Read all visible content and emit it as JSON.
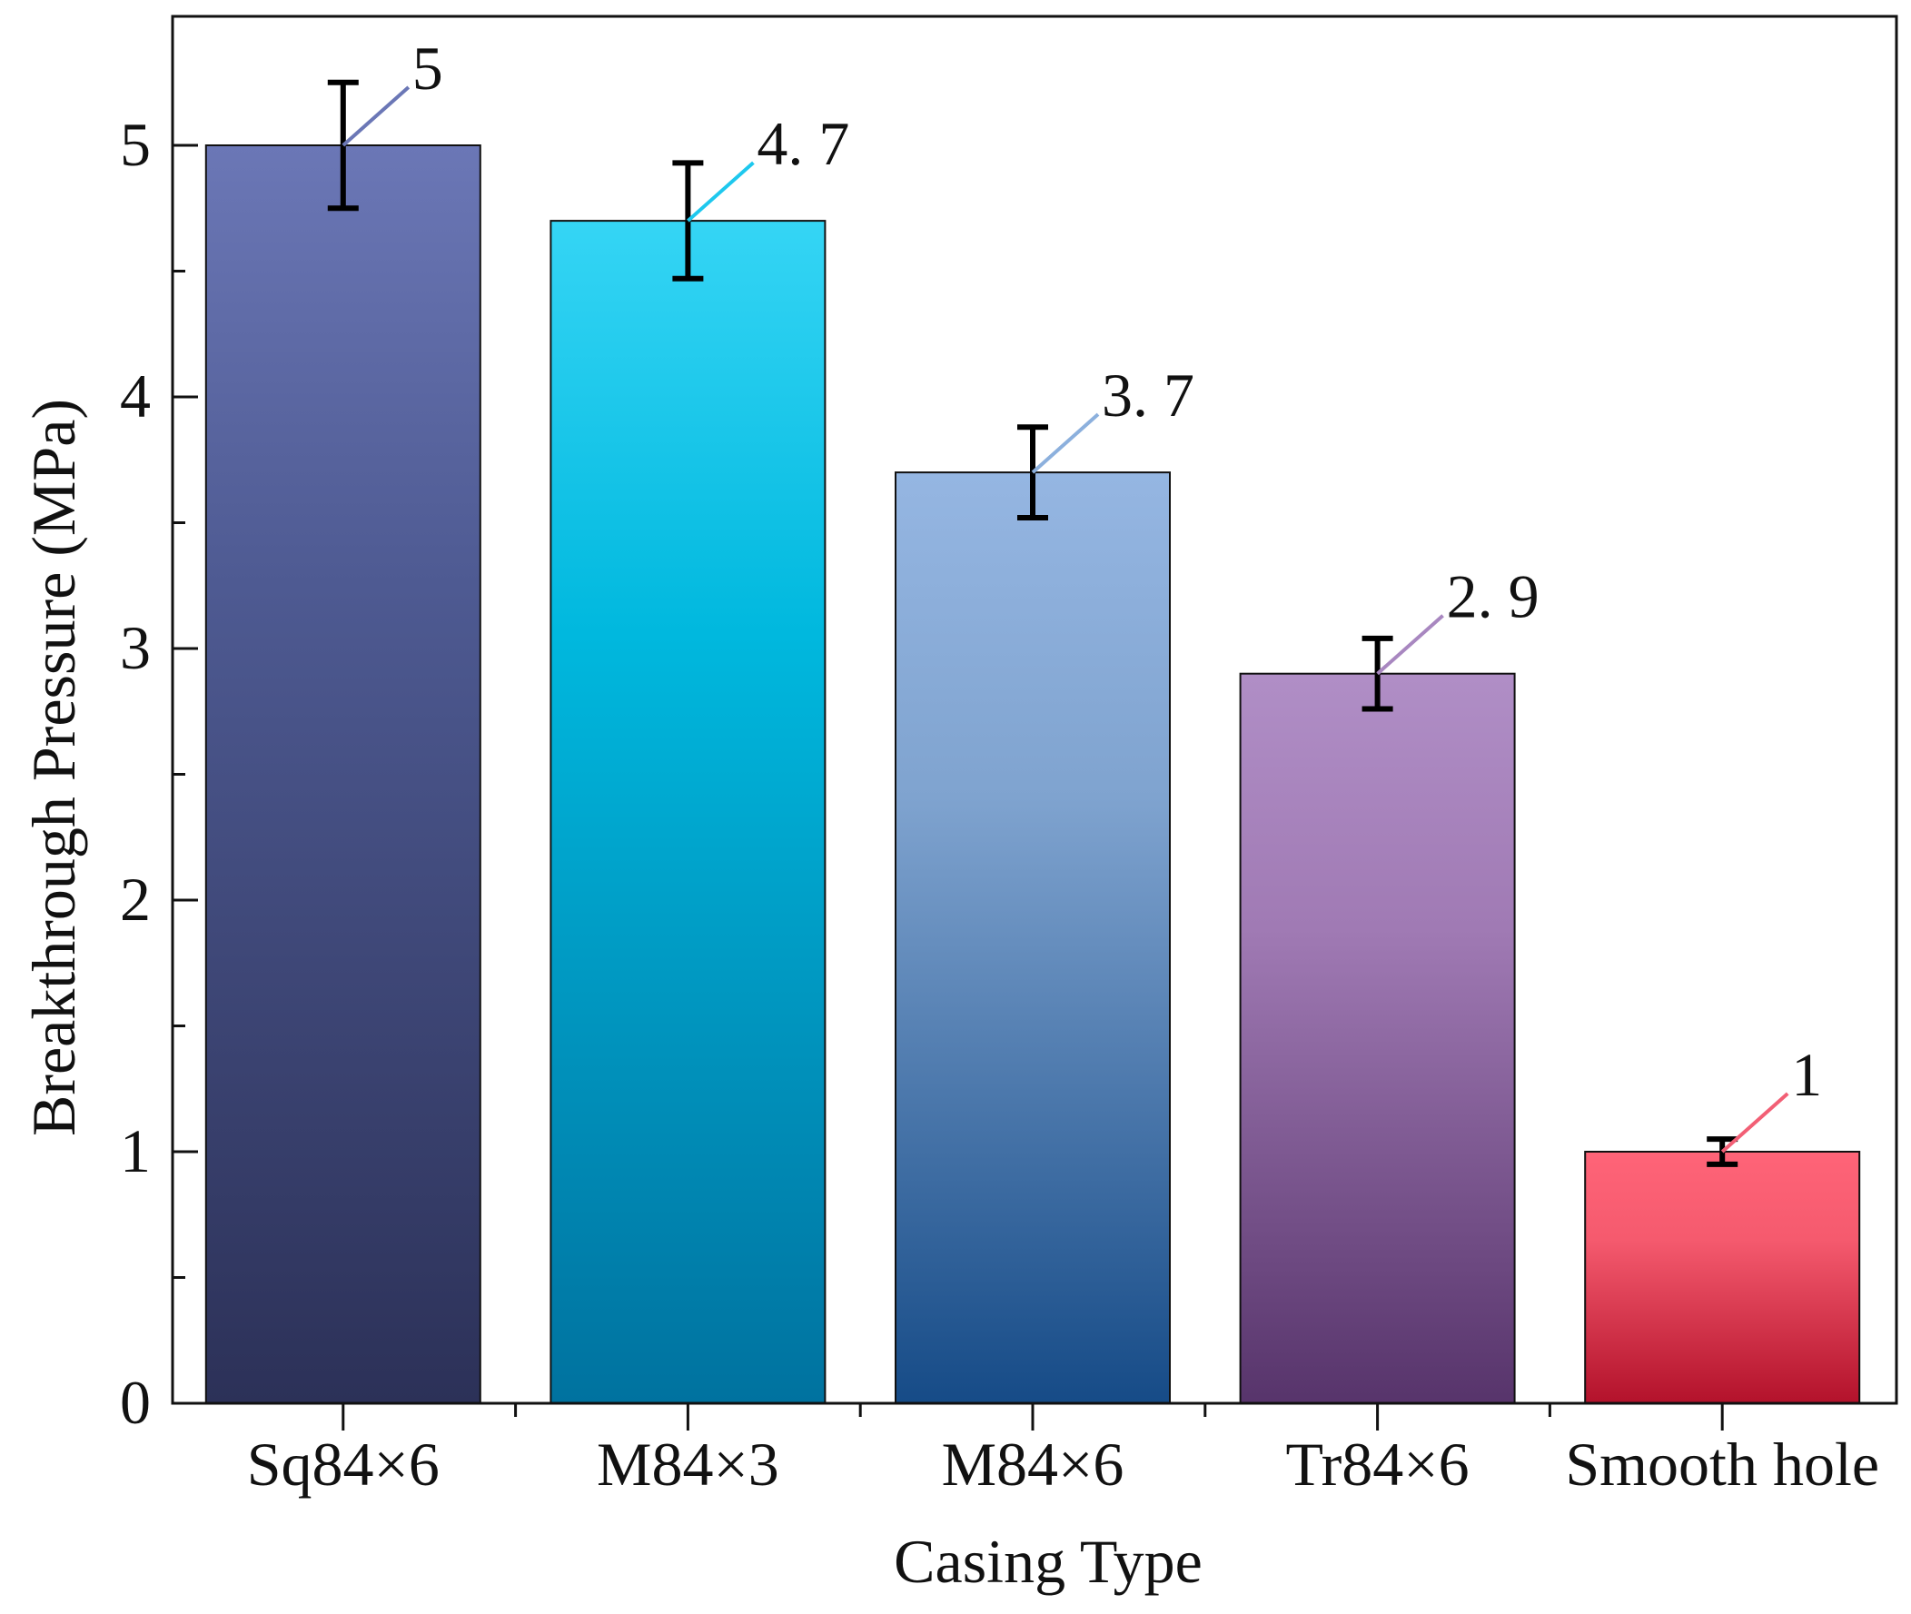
{
  "chart_data": {
    "type": "bar",
    "title": "",
    "xlabel": "Casing Type",
    "ylabel": "Breakthrough Pressure (MPa)",
    "ylim": [
      0,
      5.5
    ],
    "yticks": [
      0,
      1,
      2,
      3,
      4,
      5
    ],
    "ytick_labels": [
      "0",
      "1",
      "2",
      "3",
      "4",
      "5"
    ],
    "categories": [
      "Sq84×6",
      "M84×3",
      "M84×6",
      "Tr84×6",
      "Smooth hole"
    ],
    "values": [
      5,
      4.7,
      3.7,
      2.9,
      1
    ],
    "errors": [
      0.25,
      0.23,
      0.18,
      0.14,
      0.05
    ],
    "value_labels": [
      "5",
      "4. 7",
      "3. 7",
      "2. 9",
      "1"
    ],
    "colors": [
      {
        "top": "#6b77b6",
        "mid": "#4e5a92",
        "bottom": "#2c3158",
        "leader": "#6b77b6"
      },
      {
        "top": "#35d5f5",
        "mid": "#00b8de",
        "bottom": "#00729f",
        "leader": "#1ec8ee"
      },
      {
        "top": "#95b6e2",
        "mid": "#7fa3cf",
        "bottom": "#164b87",
        "leader": "#8cb0dd"
      },
      {
        "top": "#b08ec6",
        "mid": "#a07ab4",
        "bottom": "#57346b",
        "leader": "#a887c0"
      },
      {
        "top": "#ff6478",
        "mid": "#f55a6e",
        "bottom": "#b3122b",
        "leader": "#f25f75"
      }
    ],
    "grid": false,
    "legend": "none"
  }
}
